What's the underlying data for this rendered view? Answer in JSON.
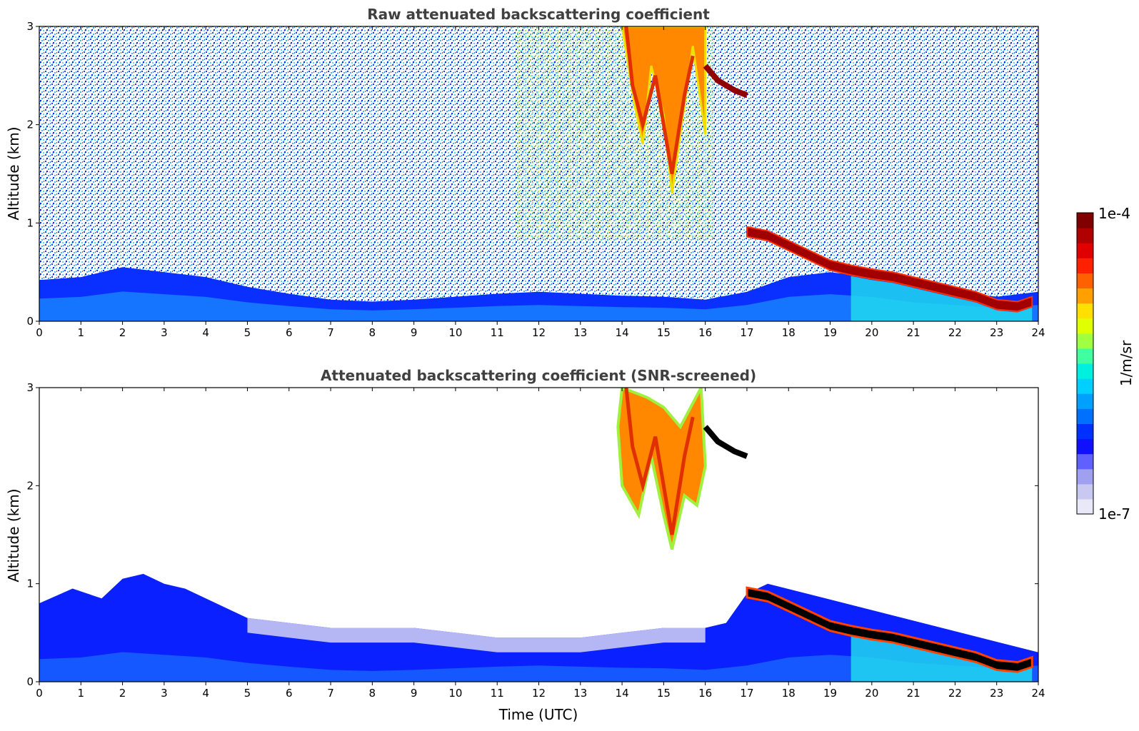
{
  "chart_data": [
    {
      "type": "heatmap",
      "title": "Raw attenuated backscattering coefficient",
      "xlabel": "",
      "ylabel": "Altitude (km)",
      "xlim": [
        0,
        24
      ],
      "ylim": [
        0,
        3
      ],
      "x_ticks": [
        "0",
        "1",
        "2",
        "3",
        "4",
        "5",
        "6",
        "7",
        "8",
        "9",
        "10",
        "11",
        "12",
        "13",
        "14",
        "15",
        "16",
        "17",
        "18",
        "19",
        "20",
        "21",
        "22",
        "23",
        "24"
      ],
      "y_ticks": [
        "0",
        "1",
        "2",
        "3"
      ],
      "features": {
        "boundary_layer": [
          [
            0,
            0.42
          ],
          [
            1,
            0.45
          ],
          [
            2,
            0.55
          ],
          [
            3,
            0.5
          ],
          [
            4,
            0.45
          ],
          [
            5,
            0.35
          ],
          [
            6,
            0.28
          ],
          [
            7,
            0.22
          ],
          [
            8,
            0.2
          ],
          [
            9,
            0.22
          ],
          [
            10,
            0.25
          ],
          [
            11,
            0.28
          ],
          [
            12,
            0.3
          ],
          [
            13,
            0.28
          ],
          [
            14,
            0.26
          ],
          [
            15,
            0.25
          ],
          [
            16,
            0.22
          ],
          [
            17,
            0.3
          ],
          [
            18,
            0.45
          ],
          [
            19,
            0.5
          ],
          [
            20,
            0.45
          ],
          [
            21,
            0.35
          ],
          [
            22,
            0.3
          ],
          [
            23,
            0.25
          ],
          [
            24,
            0.3
          ]
        ],
        "cloud_layer_top": [
          [
            17.0,
            0.96
          ],
          [
            17.5,
            0.92
          ],
          [
            18,
            0.82
          ],
          [
            18.5,
            0.72
          ],
          [
            19,
            0.62
          ],
          [
            19.5,
            0.57
          ],
          [
            20,
            0.53
          ],
          [
            20.5,
            0.5
          ],
          [
            21,
            0.45
          ],
          [
            21.5,
            0.4
          ],
          [
            22,
            0.35
          ],
          [
            22.5,
            0.3
          ],
          [
            23,
            0.22
          ],
          [
            23.5,
            0.2
          ],
          [
            23.85,
            0.25
          ]
        ],
        "high_cloud": {
          "x_range": [
            14.0,
            16.0
          ],
          "y_range": [
            1.3,
            3.0
          ]
        },
        "elevated_layer": [
          [
            16.0,
            2.6
          ],
          [
            16.3,
            2.45
          ],
          [
            16.7,
            2.35
          ],
          [
            17.0,
            2.3
          ]
        ]
      }
    },
    {
      "type": "heatmap",
      "title": "Attenuated backscattering coefficient (SNR-screened)",
      "xlabel": "Time (UTC)",
      "ylabel": "Altitude (km)",
      "xlim": [
        0,
        24
      ],
      "ylim": [
        0,
        3
      ],
      "x_ticks": [
        "0",
        "1",
        "2",
        "3",
        "4",
        "5",
        "6",
        "7",
        "8",
        "9",
        "10",
        "11",
        "12",
        "13",
        "14",
        "15",
        "16",
        "17",
        "18",
        "19",
        "20",
        "21",
        "22",
        "23",
        "24"
      ],
      "y_ticks": [
        "0",
        "1",
        "2",
        "3"
      ],
      "features": {
        "aerosol_top": [
          [
            0,
            0.8
          ],
          [
            0.8,
            0.95
          ],
          [
            1.5,
            0.85
          ],
          [
            2.0,
            1.05
          ],
          [
            2.5,
            1.1
          ],
          [
            3.0,
            1.0
          ],
          [
            3.5,
            0.95
          ],
          [
            4.0,
            0.85
          ],
          [
            4.5,
            0.75
          ],
          [
            5.0,
            0.65
          ],
          [
            6.0,
            0.6
          ],
          [
            7.0,
            0.55
          ],
          [
            8.0,
            0.55
          ],
          [
            9.0,
            0.55
          ],
          [
            10.0,
            0.5
          ],
          [
            11.0,
            0.45
          ],
          [
            12.0,
            0.45
          ],
          [
            13.0,
            0.45
          ],
          [
            14.0,
            0.5
          ],
          [
            15.0,
            0.55
          ],
          [
            16.0,
            0.55
          ],
          [
            16.5,
            0.6
          ],
          [
            17.0,
            0.9
          ],
          [
            17.5,
            1.0
          ]
        ]
      }
    }
  ],
  "colorbar": {
    "label": "1/m/sr",
    "max_label": "1e-4",
    "min_label": "1e-7",
    "colors": [
      "#e8e8f8",
      "#c8c8f0",
      "#a0a0f0",
      "#6060ff",
      "#1010ff",
      "#0030ff",
      "#0070ff",
      "#00a0ff",
      "#00d0ff",
      "#00f0e0",
      "#40ffa0",
      "#a0ff40",
      "#e0ff00",
      "#ffe000",
      "#ffa000",
      "#ff6000",
      "#ff2000",
      "#e00000",
      "#b00000",
      "#800000"
    ]
  }
}
